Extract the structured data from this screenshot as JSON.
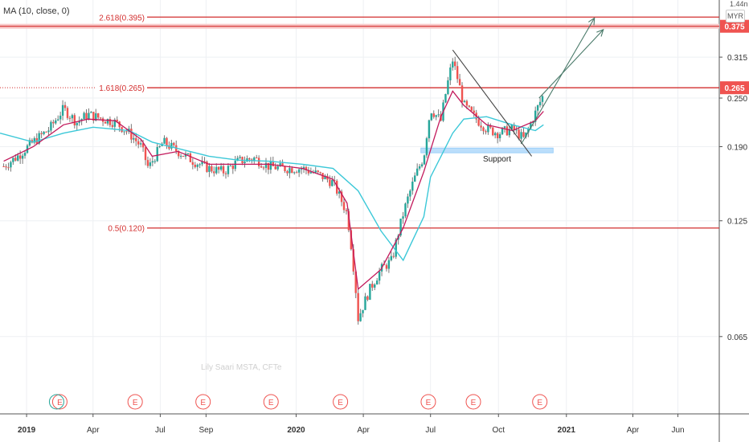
{
  "indicator": {
    "label": "MA (10, close, 0)"
  },
  "currency": {
    "label": "MYR",
    "partial_top": "1.44n"
  },
  "watermark": "Lily Saari  MSTA, CFTe",
  "colors": {
    "up": "#26a69a",
    "down": "#ef5350",
    "candle": "#777777",
    "ma_fast": "#c2185b",
    "ma_slow": "#3cc8d8",
    "fib": "#d32f2f",
    "trend": "#4a7a6a",
    "price_tag": "#ef5350",
    "support_zone": "#bbdefb"
  },
  "chart_data": {
    "type": "candlestick",
    "y_axis": {
      "ticks": [
        0.065,
        0.125,
        0.19,
        0.25,
        0.315
      ],
      "tick_labels": [
        "0.065",
        "0.125",
        "0.190",
        "0.250",
        "0.315"
      ],
      "range": [
        0.042,
        0.435
      ]
    },
    "x_axis": {
      "ticks": [
        {
          "date": "2019-01-01",
          "label": "2019",
          "bold": true
        },
        {
          "date": "2019-04-01",
          "label": "Apr"
        },
        {
          "date": "2019-07-01",
          "label": "Jul"
        },
        {
          "date": "2019-09-01",
          "label": "Sep"
        },
        {
          "date": "2020-01-01",
          "label": "2020",
          "bold": true
        },
        {
          "date": "2020-04-01",
          "label": "Apr"
        },
        {
          "date": "2020-07-01",
          "label": "Jul"
        },
        {
          "date": "2020-10-01",
          "label": "Oct"
        },
        {
          "date": "2021-01-01",
          "label": "2021",
          "bold": true
        },
        {
          "date": "2021-04-01",
          "label": "Apr"
        },
        {
          "date": "2021-06-01",
          "label": "Jun"
        }
      ],
      "range": [
        "2018-11-26",
        "2021-07-27"
      ]
    },
    "fib_levels": [
      {
        "label": "2.618(0.395)",
        "value": 0.395
      },
      {
        "label": "1.618(0.265)",
        "value": 0.265
      },
      {
        "label": "0.5(0.120)",
        "value": 0.12
      }
    ],
    "price_tags": [
      {
        "label": "0.375",
        "value": 0.375
      },
      {
        "label": "0.265",
        "value": 0.265
      }
    ],
    "resistance_band": {
      "value": 0.375
    },
    "support": {
      "label": "Support",
      "value": 0.186,
      "x_range": [
        "2020-07-01",
        "2020-12-01"
      ]
    },
    "trendlines": [
      {
        "from": [
          "2020-07-31",
          0.328
        ],
        "to": [
          "2020-11-15",
          0.18
        ]
      },
      {
        "from": [
          "2020-11-01",
          0.193
        ],
        "to": [
          "2021-02-08",
          0.393
        ]
      },
      {
        "from": [
          "2020-11-25",
          0.25
        ],
        "to": [
          "2021-02-20",
          0.368
        ]
      }
    ],
    "earnings_markers": [
      "2019-02-15",
      "2019-05-28",
      "2019-08-28",
      "2019-11-28",
      "2020-03-01",
      "2020-06-28",
      "2020-08-28",
      "2020-11-26"
    ],
    "earnings_label": "E",
    "series": [
      {
        "name": "price",
        "type": "candles",
        "points": [
          [
            "2018-12-01",
            0.17
          ],
          [
            "2018-12-20",
            0.18
          ],
          [
            "2019-01-10",
            0.195
          ],
          [
            "2019-02-01",
            0.21
          ],
          [
            "2019-02-20",
            0.235
          ],
          [
            "2019-03-10",
            0.218
          ],
          [
            "2019-03-25",
            0.228
          ],
          [
            "2019-04-15",
            0.222
          ],
          [
            "2019-05-01",
            0.218
          ],
          [
            "2019-05-20",
            0.205
          ],
          [
            "2019-06-05",
            0.19
          ],
          [
            "2019-06-15",
            0.168
          ],
          [
            "2019-07-05",
            0.195
          ],
          [
            "2019-07-25",
            0.185
          ],
          [
            "2019-08-15",
            0.175
          ],
          [
            "2019-09-05",
            0.168
          ],
          [
            "2019-09-25",
            0.165
          ],
          [
            "2019-10-15",
            0.175
          ],
          [
            "2019-11-05",
            0.178
          ],
          [
            "2019-11-25",
            0.17
          ],
          [
            "2019-12-15",
            0.168
          ],
          [
            "2020-01-10",
            0.168
          ],
          [
            "2020-02-01",
            0.162
          ],
          [
            "2020-02-20",
            0.155
          ],
          [
            "2020-03-10",
            0.13
          ],
          [
            "2020-03-25",
            0.072
          ],
          [
            "2020-04-10",
            0.085
          ],
          [
            "2020-04-25",
            0.095
          ],
          [
            "2020-05-10",
            0.1
          ],
          [
            "2020-05-25",
            0.13
          ],
          [
            "2020-06-10",
            0.16
          ],
          [
            "2020-06-22",
            0.18
          ],
          [
            "2020-07-01",
            0.235
          ],
          [
            "2020-07-15",
            0.22
          ],
          [
            "2020-07-31",
            0.31
          ],
          [
            "2020-08-15",
            0.24
          ],
          [
            "2020-09-01",
            0.222
          ],
          [
            "2020-09-15",
            0.21
          ],
          [
            "2020-10-01",
            0.205
          ],
          [
            "2020-10-20",
            0.21
          ],
          [
            "2020-11-05",
            0.198
          ],
          [
            "2020-11-20",
            0.23
          ],
          [
            "2020-12-01",
            0.255
          ]
        ]
      },
      {
        "name": "MA (10, close, 0)",
        "type": "line",
        "points": [
          [
            "2018-12-01",
            0.175
          ],
          [
            "2019-01-10",
            0.19
          ],
          [
            "2019-02-20",
            0.215
          ],
          [
            "2019-03-25",
            0.222
          ],
          [
            "2019-05-01",
            0.22
          ],
          [
            "2019-06-05",
            0.198
          ],
          [
            "2019-06-20",
            0.18
          ],
          [
            "2019-07-25",
            0.185
          ],
          [
            "2019-09-05",
            0.172
          ],
          [
            "2019-10-15",
            0.172
          ],
          [
            "2019-11-25",
            0.172
          ],
          [
            "2020-01-10",
            0.168
          ],
          [
            "2020-02-20",
            0.158
          ],
          [
            "2020-03-10",
            0.138
          ],
          [
            "2020-03-25",
            0.085
          ],
          [
            "2020-04-25",
            0.095
          ],
          [
            "2020-05-25",
            0.12
          ],
          [
            "2020-06-22",
            0.165
          ],
          [
            "2020-07-15",
            0.225
          ],
          [
            "2020-07-31",
            0.26
          ],
          [
            "2020-08-15",
            0.24
          ],
          [
            "2020-09-15",
            0.215
          ],
          [
            "2020-10-20",
            0.208
          ],
          [
            "2020-11-20",
            0.22
          ],
          [
            "2020-12-01",
            0.232
          ]
        ]
      },
      {
        "name": "slow-ma",
        "type": "line",
        "points": [
          [
            "2018-11-26",
            0.205
          ],
          [
            "2019-01-10",
            0.195
          ],
          [
            "2019-02-20",
            0.205
          ],
          [
            "2019-04-01",
            0.212
          ],
          [
            "2019-05-20",
            0.208
          ],
          [
            "2019-06-20",
            0.195
          ],
          [
            "2019-07-25",
            0.188
          ],
          [
            "2019-09-05",
            0.18
          ],
          [
            "2019-10-15",
            0.176
          ],
          [
            "2019-11-25",
            0.175
          ],
          [
            "2020-01-10",
            0.172
          ],
          [
            "2020-02-20",
            0.168
          ],
          [
            "2020-03-25",
            0.148
          ],
          [
            "2020-04-25",
            0.118
          ],
          [
            "2020-05-25",
            0.1
          ],
          [
            "2020-06-22",
            0.128
          ],
          [
            "2020-07-01",
            0.16
          ],
          [
            "2020-07-31",
            0.205
          ],
          [
            "2020-08-15",
            0.222
          ],
          [
            "2020-09-15",
            0.225
          ],
          [
            "2020-10-20",
            0.215
          ],
          [
            "2020-11-20",
            0.208
          ],
          [
            "2020-12-01",
            0.215
          ]
        ]
      }
    ]
  }
}
